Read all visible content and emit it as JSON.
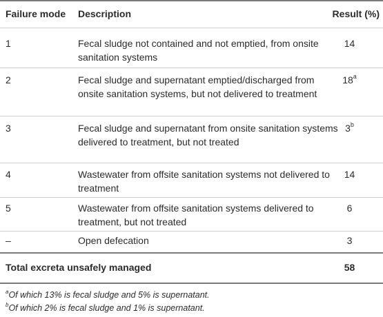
{
  "headers": {
    "mode": "Failure mode",
    "description": "Description",
    "result": "Result (%)"
  },
  "rows": [
    {
      "mode": "1",
      "description": "Fecal sludge not contained and not emptied, from onsite sanitation systems",
      "result": "14",
      "sup": ""
    },
    {
      "mode": "2",
      "description": "Fecal sludge and supernatant emptied/discharged from onsite sanitation systems, but not delivered to treatment",
      "result": "18",
      "sup": "a"
    },
    {
      "mode": "3",
      "description": "Fecal sludge and supernatant from onsite sanitation systems delivered to treatment, but not treated",
      "result": "3",
      "sup": "b"
    },
    {
      "mode": "4",
      "description": "Wastewater from offsite sanitation systems not delivered to treatment",
      "result": "14",
      "sup": ""
    },
    {
      "mode": "5",
      "description": "Wastewater from offsite sanitation systems delivered to treatment, but not treated",
      "result": "6",
      "sup": ""
    },
    {
      "mode": "–",
      "description": "Open defecation",
      "result": "3",
      "sup": ""
    }
  ],
  "total": {
    "label": "Total excreta unsafely managed",
    "result": "58"
  },
  "footnotes": [
    {
      "mark": "a",
      "text": "Of which 13% is fecal sludge and 5% is supernatant."
    },
    {
      "mark": "b",
      "text": "Of which 2% is fecal sludge and 1% is supernatant."
    }
  ]
}
